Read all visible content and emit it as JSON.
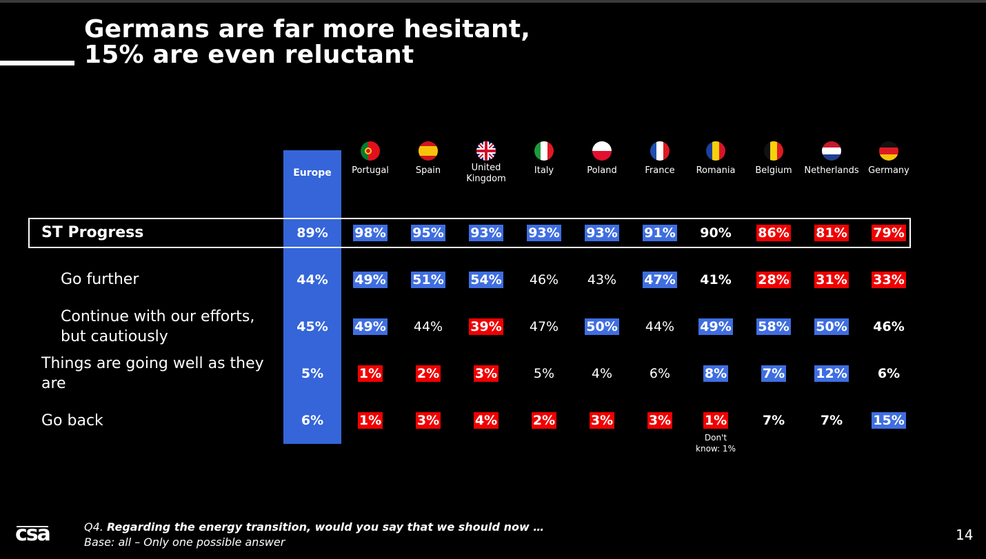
{
  "title_line1": "Germans are far more hesitant,",
  "title_line2": "15% are even reluctant",
  "chart_data": {
    "type": "table",
    "columns": [
      "Europe",
      "Portugal",
      "Spain",
      "United Kingdom",
      "Italy",
      "Poland",
      "France",
      "Romania",
      "Belgium",
      "Netherlands",
      "Germany"
    ],
    "rows": [
      {
        "label": "ST Progress",
        "values": [
          "89%",
          "98%",
          "95%",
          "93%",
          "93%",
          "93%",
          "91%",
          "90%",
          "86%",
          "81%",
          "79%"
        ],
        "styles": [
          "europe",
          "blue",
          "blue",
          "blue",
          "blue",
          "blue",
          "blue",
          "b",
          "red",
          "red",
          "red"
        ]
      },
      {
        "label": "Go further",
        "values": [
          "44%",
          "49%",
          "51%",
          "54%",
          "46%",
          "43%",
          "47%",
          "41%",
          "28%",
          "31%",
          "33%"
        ],
        "styles": [
          "europe",
          "blue",
          "blue",
          "blue",
          "",
          "",
          "blue",
          "b",
          "red",
          "red",
          "red"
        ]
      },
      {
        "label_line1": "Continue with our efforts,",
        "label_line2": "but cautiously",
        "values": [
          "45%",
          "49%",
          "44%",
          "39%",
          "47%",
          "50%",
          "44%",
          "49%",
          "58%",
          "50%",
          "46%"
        ],
        "styles": [
          "europe",
          "blue",
          "",
          "red",
          "",
          "blue",
          "",
          "blue",
          "blue",
          "blue",
          "b"
        ]
      },
      {
        "label_line1": "Things are going well as they",
        "label_line2": "are",
        "values": [
          "5%",
          "1%",
          "2%",
          "3%",
          "5%",
          "4%",
          "6%",
          "8%",
          "7%",
          "12%",
          "6%"
        ],
        "styles": [
          "europe",
          "red",
          "red",
          "red",
          "",
          "",
          "",
          "blue",
          "blue",
          "blue",
          "b"
        ]
      },
      {
        "label": "Go back",
        "values": [
          "6%",
          "1%",
          "3%",
          "4%",
          "2%",
          "3%",
          "3%",
          "1%",
          "7%",
          "7%",
          "15%"
        ],
        "styles": [
          "europe",
          "red",
          "red",
          "red",
          "red",
          "red",
          "red",
          "red",
          "b",
          "b",
          "blue"
        ]
      }
    ],
    "romania_note_line1": "Don't",
    "romania_note_line2": "know: 1%",
    "colors": {
      "europe": "#3565d9",
      "above": "#3f6ee0",
      "below": "#f00000"
    }
  },
  "footer": {
    "q_prefix": "Q4. ",
    "question": "Regarding the energy transition, would you say that we should now …",
    "base": "Base: all – Only one possible answer"
  },
  "logo": "csa",
  "page_number": "14"
}
